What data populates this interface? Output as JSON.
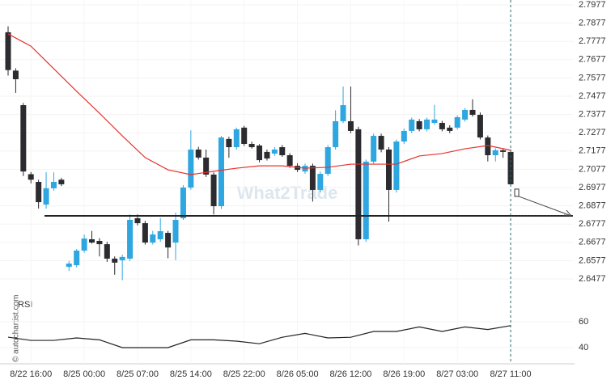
{
  "chart_data": {
    "type": "candlestick",
    "categories": [
      null,
      null,
      null,
      "8/22 16:00",
      null,
      null,
      null,
      null,
      null,
      null,
      "8/25 00:00",
      null,
      null,
      null,
      null,
      null,
      null,
      "8/25 07:00",
      null,
      null,
      null,
      null,
      null,
      null,
      "8/25 14:00",
      null,
      null,
      null,
      null,
      null,
      null,
      "8/25 22:00",
      null,
      null,
      null,
      null,
      null,
      null,
      "8/26 05:00",
      null,
      null,
      null,
      null,
      null,
      null,
      "8/26 12:00",
      null,
      null,
      null,
      null,
      null,
      null,
      "8/26 19:00",
      null,
      null,
      null,
      null,
      null,
      null,
      "8/27 03:00",
      null,
      null,
      null,
      null,
      null,
      null,
      "8/27 11:00"
    ],
    "ohlc": [
      [
        2.7827,
        2.786,
        2.759,
        2.762
      ],
      [
        2.7617,
        2.763,
        2.7495,
        2.757
      ],
      [
        2.7428,
        2.744,
        2.704,
        2.7065
      ],
      [
        2.705,
        2.7062,
        2.7,
        2.702
      ],
      [
        2.7008,
        2.702,
        2.6862,
        2.6897
      ],
      [
        2.6884,
        2.7061,
        2.6862,
        2.6973
      ],
      [
        2.6973,
        2.706,
        2.696,
        2.7008
      ],
      [
        2.702,
        2.703,
        2.6985,
        2.6995
      ],
      [
        2.6543,
        2.6575,
        2.652,
        2.6561
      ],
      [
        2.6552,
        2.664,
        2.654,
        2.6632
      ],
      [
        2.6632,
        2.672,
        2.662,
        2.6698
      ],
      [
        2.6694,
        2.674,
        2.667,
        2.6676
      ],
      [
        2.6685,
        2.67,
        2.66,
        2.6667
      ],
      [
        2.6667,
        2.668,
        2.657,
        2.6588
      ],
      [
        2.6588,
        2.66,
        2.65,
        2.6566
      ],
      [
        2.6579,
        2.661,
        2.647,
        2.6597
      ],
      [
        2.6588,
        2.683,
        2.6575,
        2.68
      ],
      [
        2.6809,
        2.683,
        2.677,
        2.6782
      ],
      [
        2.6782,
        2.6795,
        2.6665,
        2.6676
      ],
      [
        2.6676,
        2.674,
        2.6665,
        2.672
      ],
      [
        2.6694,
        2.681,
        2.668,
        2.6738
      ],
      [
        2.6729,
        2.674,
        2.659,
        2.6649
      ],
      [
        2.6676,
        2.684,
        2.658,
        2.68
      ],
      [
        2.6809,
        2.699,
        2.68,
        2.6977
      ],
      [
        2.6977,
        2.729,
        2.6965,
        2.7185
      ],
      [
        2.7185,
        2.72,
        2.713,
        2.7141
      ],
      [
        2.7141,
        2.7185,
        2.7035,
        2.7048
      ],
      [
        2.7048,
        2.706,
        2.683,
        2.6875
      ],
      [
        2.6875,
        2.726,
        2.686,
        2.7251
      ],
      [
        2.7243,
        2.7255,
        2.714,
        2.7198
      ],
      [
        2.7198,
        2.7305,
        2.7185,
        2.7296
      ],
      [
        2.7305,
        2.7315,
        2.7205,
        2.7216
      ],
      [
        2.7216,
        2.7228,
        2.719,
        2.7198
      ],
      [
        2.7207,
        2.7215,
        2.7115,
        2.7127
      ],
      [
        2.7172,
        2.7185,
        2.7125,
        2.7136
      ],
      [
        2.7163,
        2.7198,
        2.715,
        2.7185
      ],
      [
        2.7198,
        2.721,
        2.7145,
        2.7154
      ],
      [
        2.7154,
        2.7165,
        2.7085,
        2.7096
      ],
      [
        2.7096,
        2.711,
        2.7062,
        2.7074
      ],
      [
        2.7065,
        2.7108,
        2.7052,
        2.7096
      ],
      [
        2.7096,
        2.7108,
        2.69,
        2.6964
      ],
      [
        2.6964,
        2.7065,
        2.695,
        2.7052
      ],
      [
        2.7052,
        2.721,
        2.704,
        2.7198
      ],
      [
        2.7198,
        2.74,
        2.7185,
        2.734
      ],
      [
        2.734,
        2.753,
        2.733,
        2.7428
      ],
      [
        2.734,
        2.753,
        2.7275,
        2.7287
      ],
      [
        2.7296,
        2.731,
        2.666,
        2.6694
      ],
      [
        2.6694,
        2.713,
        2.668,
        2.7119
      ],
      [
        2.7119,
        2.7272,
        2.7105,
        2.726
      ],
      [
        2.726,
        2.7272,
        2.717,
        2.7185
      ],
      [
        2.7185,
        2.7198,
        2.679,
        2.6964
      ],
      [
        2.6964,
        2.724,
        2.695,
        2.7229
      ],
      [
        2.7229,
        2.73,
        2.7215,
        2.7287
      ],
      [
        2.7287,
        2.736,
        2.7275,
        2.7349
      ],
      [
        2.734,
        2.7352,
        2.7285,
        2.7296
      ],
      [
        2.7296,
        2.736,
        2.7285,
        2.7349
      ],
      [
        2.7331,
        2.743,
        2.732,
        2.7349
      ],
      [
        2.7331,
        2.7342,
        2.7285,
        2.7296
      ],
      [
        2.7305,
        2.7318,
        2.7275,
        2.7287
      ],
      [
        2.7305,
        2.7372,
        2.7295,
        2.7362
      ],
      [
        2.7349,
        2.7412,
        2.7338,
        2.7402
      ],
      [
        2.7402,
        2.746,
        2.7365,
        2.7375
      ],
      [
        2.7375,
        2.7388,
        2.724,
        2.7251
      ],
      [
        2.7251,
        2.7262,
        2.712,
        2.7154
      ],
      [
        2.7154,
        2.7192,
        2.712,
        2.7181
      ],
      [
        2.7181,
        2.7192,
        2.714,
        2.7172
      ],
      [
        2.7172,
        2.7185,
        2.6985,
        2.6995
      ]
    ],
    "bull_color": "#2ea6df",
    "bear_color": "#2b2b30",
    "ylim": [
      2.6477,
      2.7977
    ],
    "yticks": [
      2.7977,
      2.7877,
      2.7777,
      2.7677,
      2.7577,
      2.7477,
      2.7377,
      2.7277,
      2.7177,
      2.7077,
      2.6977,
      2.6877,
      2.6777,
      2.6677,
      2.6577,
      2.6477
    ],
    "ma": {
      "color": "#e8312c",
      "x": [
        0,
        3,
        6,
        9,
        12,
        15,
        18,
        21,
        24,
        27,
        30,
        33,
        36,
        39,
        42,
        45,
        48,
        51,
        54,
        57,
        60,
        63,
        66
      ],
      "values": [
        2.7818,
        2.7751,
        2.7627,
        2.7504,
        2.7384,
        2.726,
        2.7141,
        2.7074,
        2.7048,
        2.7066,
        2.7083,
        2.7096,
        2.7096,
        2.7083,
        2.7088,
        2.7105,
        2.7105,
        2.7105,
        2.715,
        2.7163,
        2.7189,
        2.7207,
        2.7181
      ]
    },
    "support_level": 2.6822,
    "rsi": {
      "label": "RSI",
      "color": "#222222",
      "ylim": [
        30,
        70
      ],
      "yticks": [
        60,
        40
      ],
      "x": [
        0,
        3,
        6,
        9,
        12,
        15,
        18,
        21,
        24,
        27,
        30,
        33,
        36,
        39,
        42,
        45,
        48,
        51,
        54,
        57,
        60,
        63,
        66
      ],
      "values": [
        48.1,
        45.6,
        45.6,
        47.5,
        46,
        40,
        40,
        40,
        46,
        46,
        45,
        43,
        48,
        51,
        47.5,
        48,
        52.5,
        52.5,
        56,
        52.5,
        56,
        54,
        57
      ]
    },
    "watermark": "What2Trade",
    "credit": "© autochartist.com"
  }
}
